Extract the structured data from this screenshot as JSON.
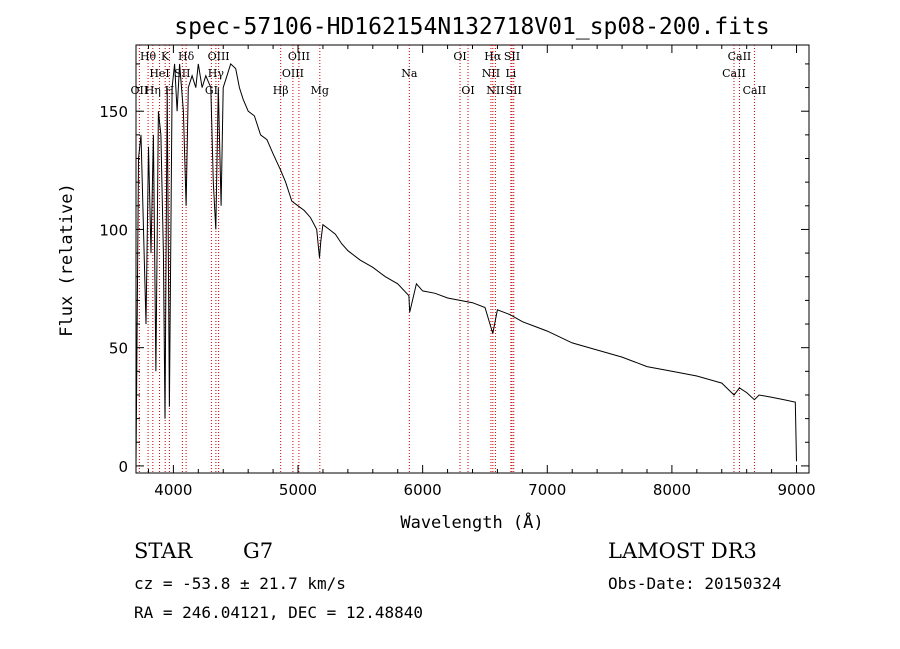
{
  "chart_data": {
    "type": "line",
    "title": "spec-57106-HD162154N132718V01_sp08-200.fits",
    "xlabel": "Wavelength (Å)",
    "ylabel": "Flux (relative)",
    "xlim": [
      3700,
      9100
    ],
    "ylim": [
      -3,
      178
    ],
    "xticks": [
      4000,
      5000,
      6000,
      7000,
      8000,
      9000
    ],
    "yticks": [
      0,
      50,
      100,
      150
    ],
    "series": [
      {
        "name": "flux",
        "x": [
          3700,
          3720,
          3740,
          3760,
          3780,
          3800,
          3820,
          3840,
          3860,
          3880,
          3900,
          3920,
          3933,
          3950,
          3968,
          3990,
          4010,
          4030,
          4050,
          4080,
          4102,
          4120,
          4150,
          4180,
          4200,
          4230,
          4260,
          4300,
          4320,
          4340,
          4360,
          4383,
          4400,
          4430,
          4460,
          4500,
          4530,
          4560,
          4600,
          4650,
          4700,
          4750,
          4800,
          4861,
          4900,
          4950,
          5000,
          5050,
          5100,
          5150,
          5172,
          5183,
          5200,
          5250,
          5300,
          5350,
          5400,
          5500,
          5600,
          5700,
          5800,
          5890,
          5896,
          5950,
          6000,
          6100,
          6200,
          6300,
          6400,
          6500,
          6563,
          6600,
          6700,
          6800,
          6900,
          7000,
          7200,
          7400,
          7600,
          7800,
          8000,
          8200,
          8400,
          8498,
          8542,
          8600,
          8662,
          8700,
          8800,
          8900,
          8990,
          9000
        ],
        "y": [
          0,
          130,
          140,
          100,
          60,
          135,
          90,
          140,
          40,
          150,
          140,
          90,
          20,
          160,
          25,
          160,
          170,
          150,
          170,
          150,
          110,
          160,
          165,
          160,
          170,
          160,
          165,
          160,
          120,
          100,
          160,
          110,
          160,
          165,
          170,
          168,
          160,
          155,
          150,
          148,
          140,
          138,
          132,
          125,
          120,
          112,
          110,
          108,
          105,
          100,
          88,
          95,
          102,
          100,
          98,
          94,
          91,
          87,
          84,
          80,
          77,
          72,
          65,
          77,
          74,
          73,
          71,
          70,
          69,
          67,
          56,
          66,
          64,
          61,
          59,
          57,
          52,
          49,
          46,
          42,
          40,
          38,
          35,
          30,
          33,
          31,
          28,
          30,
          29,
          28,
          27,
          2
        ]
      }
    ],
    "lines": [
      {
        "label": "OII",
        "wl": 3727,
        "row": 3
      },
      {
        "label": "Hθ",
        "wl": 3797,
        "row": 1
      },
      {
        "label": "Hη",
        "wl": 3835,
        "row": 3
      },
      {
        "label": "HeI",
        "wl": 3889,
        "row": 2
      },
      {
        "label": "K",
        "wl": 3934,
        "row": 1
      },
      {
        "label": "H",
        "wl": 3968,
        "row": 3
      },
      {
        "label": "Hδ",
        "wl": 4102,
        "row": 1
      },
      {
        "label": "SII",
        "wl": 4072,
        "row": 2
      },
      {
        "label": "GI",
        "wl": 4305,
        "row": 3
      },
      {
        "label": "Hγ",
        "wl": 4341,
        "row": 2
      },
      {
        "label": "OIII",
        "wl": 4363,
        "row": 1
      },
      {
        "label": "Hβ",
        "wl": 4861,
        "row": 3
      },
      {
        "label": "OIII",
        "wl": 4959,
        "row": 2
      },
      {
        "label": "OIII",
        "wl": 5007,
        "row": 1
      },
      {
        "label": "Mg",
        "wl": 5175,
        "row": 3
      },
      {
        "label": "Na",
        "wl": 5893,
        "row": 2
      },
      {
        "label": "OI",
        "wl": 6300,
        "row": 1
      },
      {
        "label": "OI",
        "wl": 6364,
        "row": 3
      },
      {
        "label": "NII",
        "wl": 6548,
        "row": 2
      },
      {
        "label": "Hα",
        "wl": 6563,
        "row": 1
      },
      {
        "label": "NII",
        "wl": 6584,
        "row": 3
      },
      {
        "label": "SII",
        "wl": 6717,
        "row": 1
      },
      {
        "label": "Li",
        "wl": 6708,
        "row": 2
      },
      {
        "label": "SII",
        "wl": 6731,
        "row": 3
      },
      {
        "label": "CaII",
        "wl": 8498,
        "row": 2
      },
      {
        "label": "CaII",
        "wl": 8542,
        "row": 1
      },
      {
        "label": "CaII",
        "wl": 8662,
        "row": 3
      }
    ]
  },
  "info": {
    "class_label": "STAR",
    "subclass": "G7",
    "survey": "LAMOST DR3",
    "cz": "cz = -53.8 ± 21.7 km/s",
    "obs_date": "Obs-Date: 20150324",
    "coords": "RA = 246.04121, DEC =  12.48840"
  },
  "colors": {
    "line_marker": "#cc0000",
    "flux": "#000000"
  }
}
